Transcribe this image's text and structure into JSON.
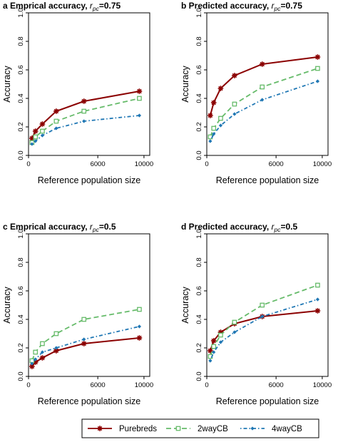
{
  "chart_data": [
    {
      "type": "line",
      "panel_letter": "a",
      "title": "Emprical accuracy, ",
      "title_sym": "r",
      "title_sub": "pc",
      "title_val": "=0.75",
      "xlabel": "Reference population size",
      "ylabel": "Accuracy",
      "xlim": [
        0,
        10500
      ],
      "ylim": [
        0,
        1
      ],
      "xticks": [
        0,
        6000,
        10000
      ],
      "yticks": [
        0.0,
        0.2,
        0.4,
        0.6,
        0.8,
        1.0
      ],
      "x": [
        300,
        600,
        1200,
        2400,
        4800,
        9600
      ],
      "series": [
        {
          "name": "Purebreds",
          "values": [
            0.12,
            0.17,
            0.22,
            0.31,
            0.38,
            0.45
          ]
        },
        {
          "name": "2wayCB",
          "values": [
            0.09,
            0.13,
            0.17,
            0.24,
            0.31,
            0.4
          ]
        },
        {
          "name": "4wayCB",
          "values": [
            0.08,
            0.1,
            0.14,
            0.19,
            0.24,
            0.28
          ]
        }
      ]
    },
    {
      "type": "line",
      "panel_letter": "b",
      "title": "Predicted accuracy, ",
      "title_sym": "r",
      "title_sub": "pc",
      "title_val": "=0.75",
      "xlabel": "Reference population size",
      "ylabel": "Accuracy",
      "xlim": [
        0,
        10500
      ],
      "ylim": [
        0,
        1
      ],
      "xticks": [
        0,
        6000,
        10000
      ],
      "yticks": [
        0.0,
        0.2,
        0.4,
        0.6,
        0.8,
        1.0
      ],
      "x": [
        300,
        600,
        1200,
        2400,
        4800,
        9600
      ],
      "series": [
        {
          "name": "Purebreds",
          "values": [
            0.28,
            0.37,
            0.47,
            0.56,
            0.64,
            0.69
          ]
        },
        {
          "name": "2wayCB",
          "values": [
            0.13,
            0.19,
            0.26,
            0.36,
            0.48,
            0.61
          ]
        },
        {
          "name": "4wayCB",
          "values": [
            0.1,
            0.15,
            0.21,
            0.29,
            0.39,
            0.52
          ]
        }
      ]
    },
    {
      "type": "line",
      "panel_letter": "c",
      "title": "Emprical accuracy, ",
      "title_sym": "r",
      "title_sub": "pc",
      "title_val": "=0.5",
      "xlabel": "Reference population size",
      "ylabel": "Accuracy",
      "xlim": [
        0,
        10500
      ],
      "ylim": [
        0,
        1
      ],
      "xticks": [
        0,
        6000,
        10000
      ],
      "yticks": [
        0.0,
        0.2,
        0.4,
        0.6,
        0.8,
        1.0
      ],
      "x": [
        300,
        600,
        1200,
        2400,
        4800,
        9600
      ],
      "series": [
        {
          "name": "Purebreds",
          "values": [
            0.07,
            0.1,
            0.13,
            0.18,
            0.23,
            0.27
          ]
        },
        {
          "name": "2wayCB",
          "values": [
            0.11,
            0.17,
            0.23,
            0.3,
            0.4,
            0.47
          ]
        },
        {
          "name": "4wayCB",
          "values": [
            0.09,
            0.12,
            0.17,
            0.2,
            0.26,
            0.35
          ]
        }
      ]
    },
    {
      "type": "line",
      "panel_letter": "d",
      "title": "Predicted accuracy, ",
      "title_sym": "r",
      "title_sub": "pc",
      "title_val": "=0.5",
      "xlabel": "Reference population size",
      "ylabel": "Accuracy",
      "xlim": [
        0,
        10500
      ],
      "ylim": [
        0,
        1
      ],
      "xticks": [
        0,
        6000,
        10000
      ],
      "yticks": [
        0.0,
        0.2,
        0.4,
        0.6,
        0.8,
        1.0
      ],
      "x": [
        300,
        600,
        1200,
        2400,
        4800,
        9600
      ],
      "series": [
        {
          "name": "Purebreds",
          "values": [
            0.18,
            0.25,
            0.31,
            0.37,
            0.42,
            0.46
          ]
        },
        {
          "name": "2wayCB",
          "values": [
            0.14,
            0.21,
            0.29,
            0.38,
            0.5,
            0.64
          ]
        },
        {
          "name": "4wayCB",
          "values": [
            0.11,
            0.17,
            0.24,
            0.31,
            0.42,
            0.54
          ]
        }
      ]
    }
  ],
  "legend": {
    "placement": "bottom-center",
    "items": [
      {
        "label": "Purebreds",
        "color": "#8b0000",
        "marker": "asterisk",
        "dash": "solid"
      },
      {
        "label": "2wayCB",
        "color": "#66bb6a",
        "marker": "open-square",
        "dash": "long-dash"
      },
      {
        "label": "4wayCB",
        "color": "#1f77b4",
        "marker": "filled-diamond",
        "dash": "dot-dash"
      }
    ]
  }
}
